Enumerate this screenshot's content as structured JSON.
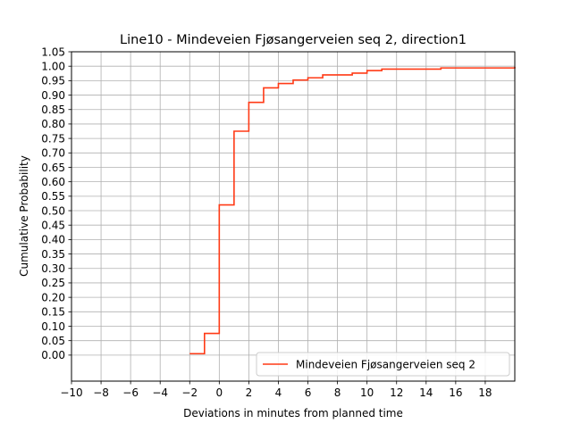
{
  "chart_data": {
    "type": "line",
    "title": "Line10 - Mindeveien Fjøsangerveien seq 2, direction1",
    "xlabel": "Deviations in minutes from planned time",
    "ylabel": "Cumulative Probability",
    "xlim": [
      -10,
      20
    ],
    "ylim": [
      -0.09,
      1.05
    ],
    "x_ticks": [
      -10,
      -8,
      -6,
      -4,
      -2,
      0,
      2,
      4,
      6,
      8,
      10,
      12,
      14,
      16,
      18
    ],
    "x_tick_labels": [
      "−10",
      "−8",
      "−6",
      "−4",
      "−2",
      "0",
      "2",
      "4",
      "6",
      "8",
      "10",
      "12",
      "14",
      "16",
      "18"
    ],
    "y_ticks": [
      0,
      0.05,
      0.1,
      0.15,
      0.2,
      0.25,
      0.3,
      0.35,
      0.4,
      0.45,
      0.5,
      0.55,
      0.6,
      0.65,
      0.7,
      0.75,
      0.8,
      0.85,
      0.9,
      0.95,
      1.0,
      1.05
    ],
    "y_tick_labels": [
      "0.00",
      "0.05",
      "0.10",
      "0.15",
      "0.20",
      "0.25",
      "0.30",
      "0.35",
      "0.40",
      "0.45",
      "0.50",
      "0.55",
      "0.60",
      "0.65",
      "0.70",
      "0.75",
      "0.80",
      "0.85",
      "0.90",
      "0.95",
      "1.00",
      "1.05"
    ],
    "grid": true,
    "legend_position": "lower-right",
    "series": [
      {
        "name": "Mindeveien Fjøsangerveien seq 2",
        "color": "#ff3a16",
        "step": "post",
        "x": [
          -2,
          -1,
          0,
          1,
          2,
          3,
          4,
          5,
          6,
          7,
          9,
          10,
          11,
          15,
          20
        ],
        "y": [
          0.005,
          0.075,
          0.52,
          0.775,
          0.875,
          0.925,
          0.94,
          0.952,
          0.96,
          0.97,
          0.976,
          0.985,
          0.99,
          0.994,
          0.998
        ]
      }
    ]
  }
}
